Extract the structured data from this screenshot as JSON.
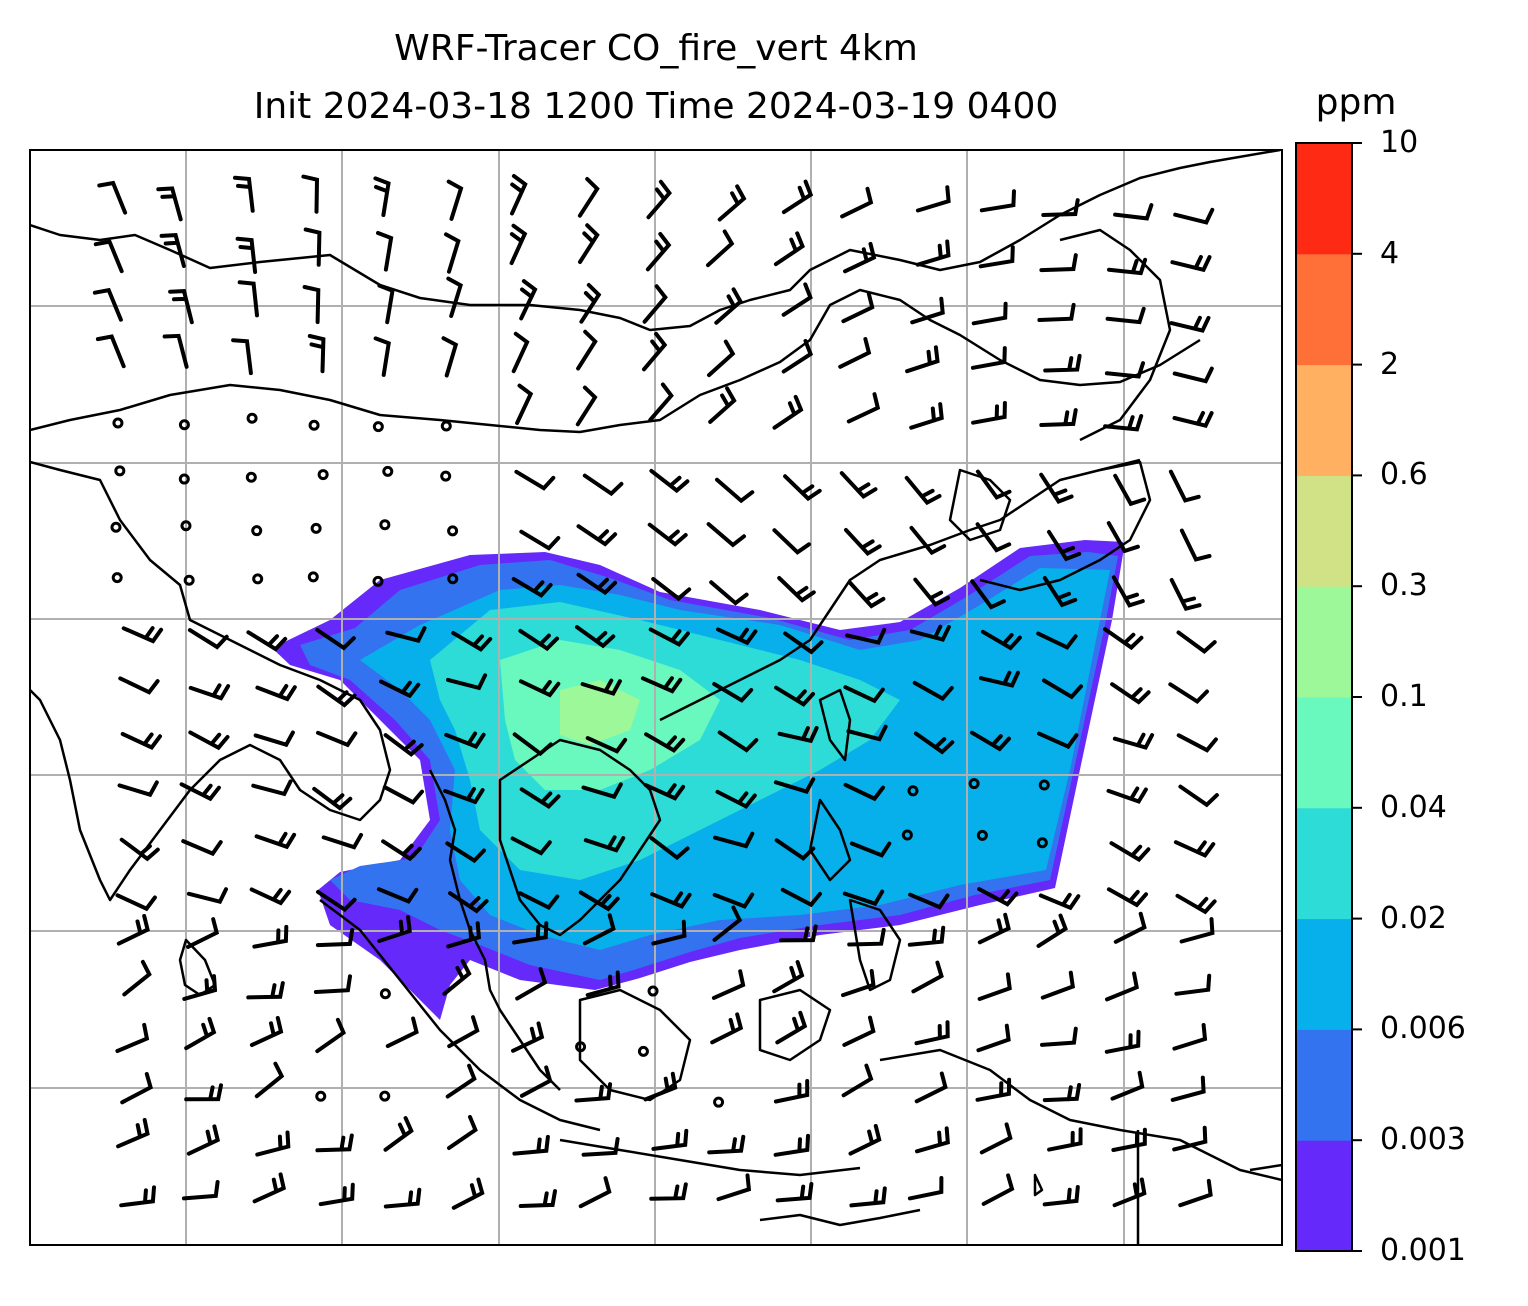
{
  "title_line1": "WRF-Tracer CO_fire_vert 4km",
  "title_line2": "Init 2024-03-18 1200 Time 2024-03-19 0400",
  "colorbar": {
    "unit": "ppm",
    "levels": [
      "0.001",
      "0.003",
      "0.006",
      "0.02",
      "0.04",
      "0.1",
      "0.3",
      "0.6",
      "2",
      "4",
      "10"
    ],
    "colors": [
      "#6529fa",
      "#3473f0",
      "#07b0ea",
      "#2ddcd6",
      "#69f8bd",
      "#9df89a",
      "#d1e186",
      "#ffb061",
      "#ff7039",
      "#ff2a14"
    ]
  },
  "map": {
    "field": "CO_fire_vert",
    "overlay": "wind barbs",
    "gridlines": true,
    "coastline_color": "#000000",
    "grid_color": "#b0b0b0"
  }
}
